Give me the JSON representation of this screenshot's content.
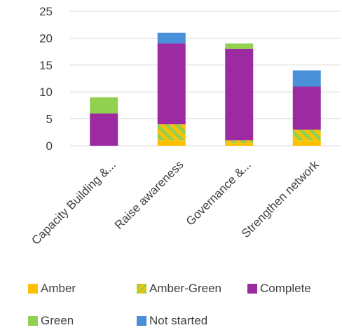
{
  "chart_data": {
    "type": "bar",
    "stacked": true,
    "categories": [
      "Capacity Building &...",
      "Raise awareness",
      "Governance &...",
      "Strengthen network"
    ],
    "series": [
      {
        "name": "Amber",
        "values": [
          0,
          1,
          0.5,
          1
        ],
        "color": "#FFC000",
        "pattern": "solid"
      },
      {
        "name": "Amber-Green",
        "values": [
          0,
          3,
          0.5,
          2
        ],
        "color": "#92D050",
        "pattern": "amber-green-stripes"
      },
      {
        "name": "Complete",
        "values": [
          6,
          15,
          17,
          8
        ],
        "color": "#9C2AA0"
      },
      {
        "name": "Green",
        "values": [
          3,
          0,
          1,
          0
        ],
        "color": "#92D050"
      },
      {
        "name": "Not started",
        "values": [
          0,
          2,
          0,
          3
        ],
        "color": "#4A90D9"
      }
    ],
    "y_ticks": [
      "0",
      "5",
      "10",
      "15",
      "20",
      "25"
    ],
    "ylim": [
      0,
      25
    ],
    "grid": true,
    "legend_position": "bottom",
    "title": "",
    "xlabel": "",
    "ylabel": ""
  }
}
